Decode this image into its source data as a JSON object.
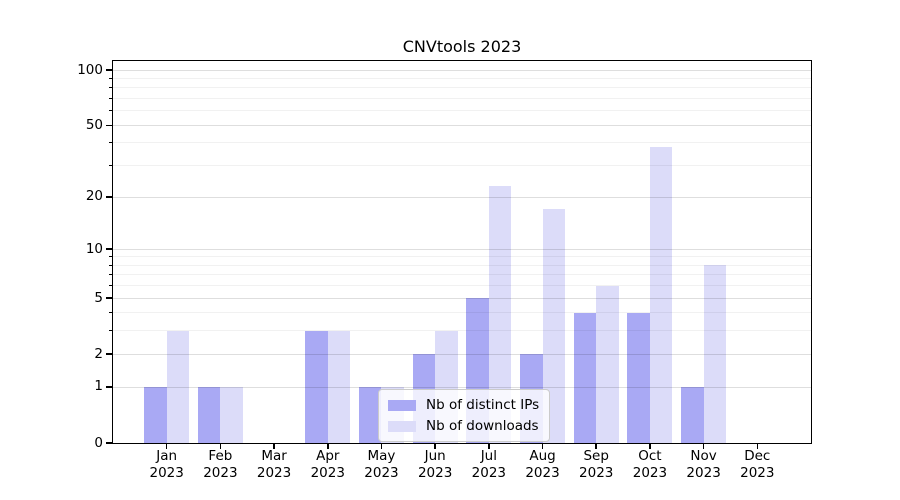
{
  "chart_data": {
    "type": "bar",
    "title": "CNVtools 2023",
    "categories": [
      "Jan",
      "Feb",
      "Mar",
      "Apr",
      "May",
      "Jun",
      "Jul",
      "Aug",
      "Sep",
      "Oct",
      "Nov",
      "Dec"
    ],
    "year": "2023",
    "series": [
      {
        "name": "Nb of distinct IPs",
        "color": "#a9a9f4",
        "values": [
          1,
          1,
          0,
          3,
          1,
          2,
          5,
          2,
          4,
          4,
          1,
          0
        ]
      },
      {
        "name": "Nb of downloads",
        "color": "#dcdcf9",
        "values": [
          3,
          1,
          0,
          3,
          1,
          3,
          23,
          17,
          6,
          38,
          8,
          0
        ]
      }
    ],
    "xlabel": "",
    "ylabel": "",
    "y_axis": {
      "scale": "log1p",
      "ylim": [
        0,
        112
      ],
      "major_ticks": [
        0,
        1,
        2,
        5,
        10,
        20,
        50,
        100
      ],
      "minor_ticks": [
        3,
        4,
        6,
        7,
        8,
        9,
        30,
        40,
        60,
        70,
        80,
        90
      ]
    },
    "grid": "horizontal",
    "legend_position": "lower center-left inside plot"
  }
}
